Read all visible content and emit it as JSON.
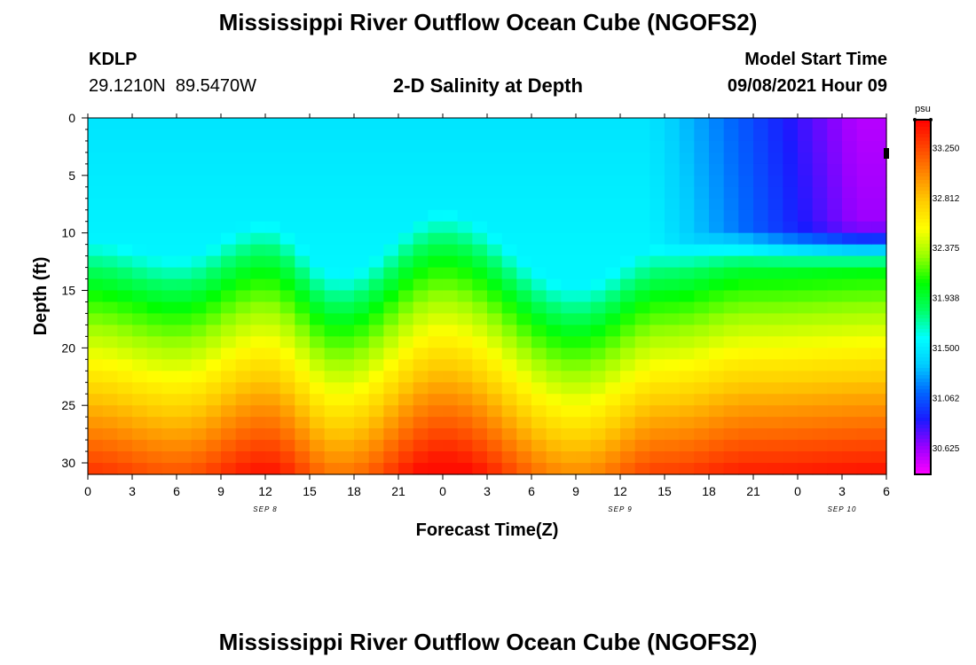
{
  "header": {
    "title": "Mississippi River Outflow Ocean Cube (NGOFS2)",
    "station_id": "KDLP",
    "station_coords": "29.1210N  89.5470W",
    "subtitle": "2-D Salinity at Depth",
    "model_start_label": "Model Start Time",
    "model_start_value": "09/08/2021 Hour 09"
  },
  "footer": {
    "title": "Mississippi River Outflow Ocean Cube (NGOFS2)"
  },
  "chart_data": {
    "type": "heatmap",
    "title": "2-D Salinity at Depth",
    "xlabel": "Forecast Time(Z)",
    "ylabel": "Depth (ft)",
    "x_tick_labels": [
      "0",
      "3",
      "6",
      "9",
      "12",
      "15",
      "18",
      "21",
      "0",
      "3",
      "6",
      "9",
      "12",
      "15",
      "18",
      "21",
      "0",
      "3",
      "6"
    ],
    "x_date_labels": [
      {
        "label": "SEP 8",
        "hours": 12
      },
      {
        "label": "SEP 9",
        "hours": 36
      },
      {
        "label": "SEP 10",
        "hours": 51
      }
    ],
    "xlim_hours": [
      0,
      54
    ],
    "y_ticks": [
      0,
      5,
      10,
      15,
      20,
      25,
      30
    ],
    "ylim": [
      0,
      31
    ],
    "y_inverted": true,
    "colorbar": {
      "unit": "psu",
      "ticks": [
        "33.250",
        "32.812",
        "32.375",
        "31.938",
        "31.500",
        "31.062",
        "30.625"
      ],
      "range": [
        30.4,
        33.5
      ],
      "colors": [
        "#ff00ff",
        "#9900ff",
        "#1a1aff",
        "#0066ff",
        "#00ccff",
        "#00ffff",
        "#00ff66",
        "#00ff00",
        "#99ff00",
        "#ffff00",
        "#ffcc00",
        "#ff8800",
        "#ff4400",
        "#ff0000"
      ]
    },
    "profile_description": "Low salinity (~31.4 psu, blue) in the upper ~12 ft, sharp halocline near 14-20 ft oscillating with the tide, rising to ~33.4 psu (red) at 31 ft; fresher surface water (~30.6 psu, magenta) appears after hour 42.",
    "halocline_depth_ft_by_hour": [
      {
        "hours": 0,
        "depth": 15.5
      },
      {
        "hours": 6,
        "depth": 17.0
      },
      {
        "hours": 12,
        "depth": 14.0
      },
      {
        "hours": 17,
        "depth": 18.5
      },
      {
        "hours": 24,
        "depth": 13.0
      },
      {
        "hours": 33,
        "depth": 19.5
      },
      {
        "hours": 39,
        "depth": 16.0
      },
      {
        "hours": 45,
        "depth": 14.5
      },
      {
        "hours": 54,
        "depth": 14.0
      }
    ]
  }
}
